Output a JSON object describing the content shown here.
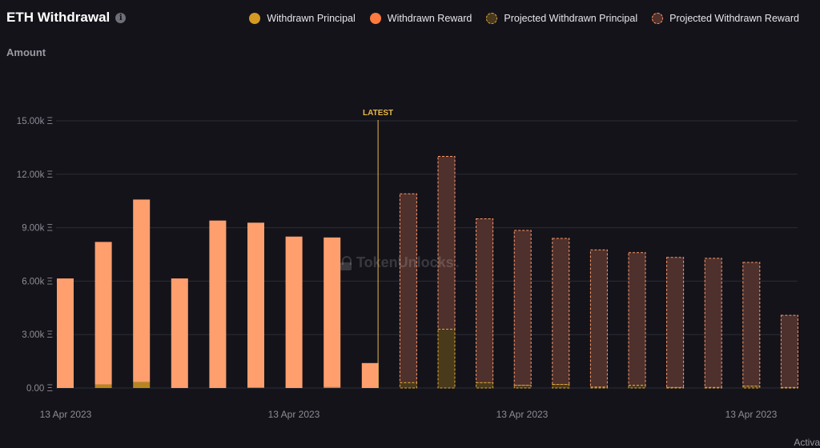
{
  "header": {
    "title": "ETH Withdrawal"
  },
  "legend": [
    {
      "label": "Withdrawn Principal",
      "key": "principal"
    },
    {
      "label": "Withdrawn Reward",
      "key": "reward"
    },
    {
      "label": "Projected Withdrawn Principal",
      "key": "proj_principal"
    },
    {
      "label": "Projected Withdrawn Reward",
      "key": "proj_reward"
    }
  ],
  "y_axis_title": "Amount",
  "latest_label": "LATEST",
  "watermark": {
    "part1": "Token",
    "part2": "Unlocks",
    "part3": "."
  },
  "corner_text": "Activa",
  "colors": {
    "background": "#14131a",
    "principal": "#d49a22",
    "reward": "#ff9f6e",
    "proj_principal_fill": "#4a3a1c",
    "proj_principal_border": "#e0a935",
    "proj_reward_fill": "#4e302c",
    "proj_reward_border": "#ff9a6c",
    "latest_line": "#e8b84a",
    "grid": "#2c2c35"
  },
  "chart_data": {
    "type": "bar",
    "stacked": true,
    "y_unit": "Ξ",
    "ylim": [
      0,
      15000
    ],
    "yticks": [
      "0.00 Ξ",
      "3.00k Ξ",
      "6.00k Ξ",
      "9.00k Ξ",
      "12.00k Ξ",
      "15.00k Ξ"
    ],
    "yticks_values": [
      0,
      3000,
      6000,
      9000,
      12000,
      15000
    ],
    "x_tick_labels": [
      "13 Apr 2023",
      "13 Apr 2023",
      "13 Apr 2023",
      "13 Apr 2023"
    ],
    "latest_after_index": 8,
    "series": [
      {
        "name": "Withdrawn Principal",
        "values": [
          0,
          200,
          330,
          0,
          0,
          30,
          0,
          50,
          0,
          null,
          null,
          null,
          null,
          null,
          null,
          null,
          null,
          null,
          null,
          null
        ]
      },
      {
        "name": "Withdrawn Reward",
        "values": [
          6150,
          8000,
          10250,
          6150,
          9400,
          9250,
          8500,
          8400,
          1400,
          null,
          null,
          null,
          null,
          null,
          null,
          null,
          null,
          null,
          null,
          null
        ]
      },
      {
        "name": "Projected Withdrawn Principal",
        "values": [
          null,
          null,
          null,
          null,
          null,
          null,
          null,
          null,
          null,
          300,
          3300,
          300,
          150,
          200,
          50,
          150,
          30,
          30,
          100,
          30
        ]
      },
      {
        "name": "Projected Withdrawn Reward",
        "values": [
          null,
          null,
          null,
          null,
          null,
          null,
          null,
          null,
          null,
          10600,
          9700,
          9200,
          8700,
          8200,
          7700,
          7450,
          7300,
          7250,
          6950,
          4050
        ]
      }
    ]
  }
}
